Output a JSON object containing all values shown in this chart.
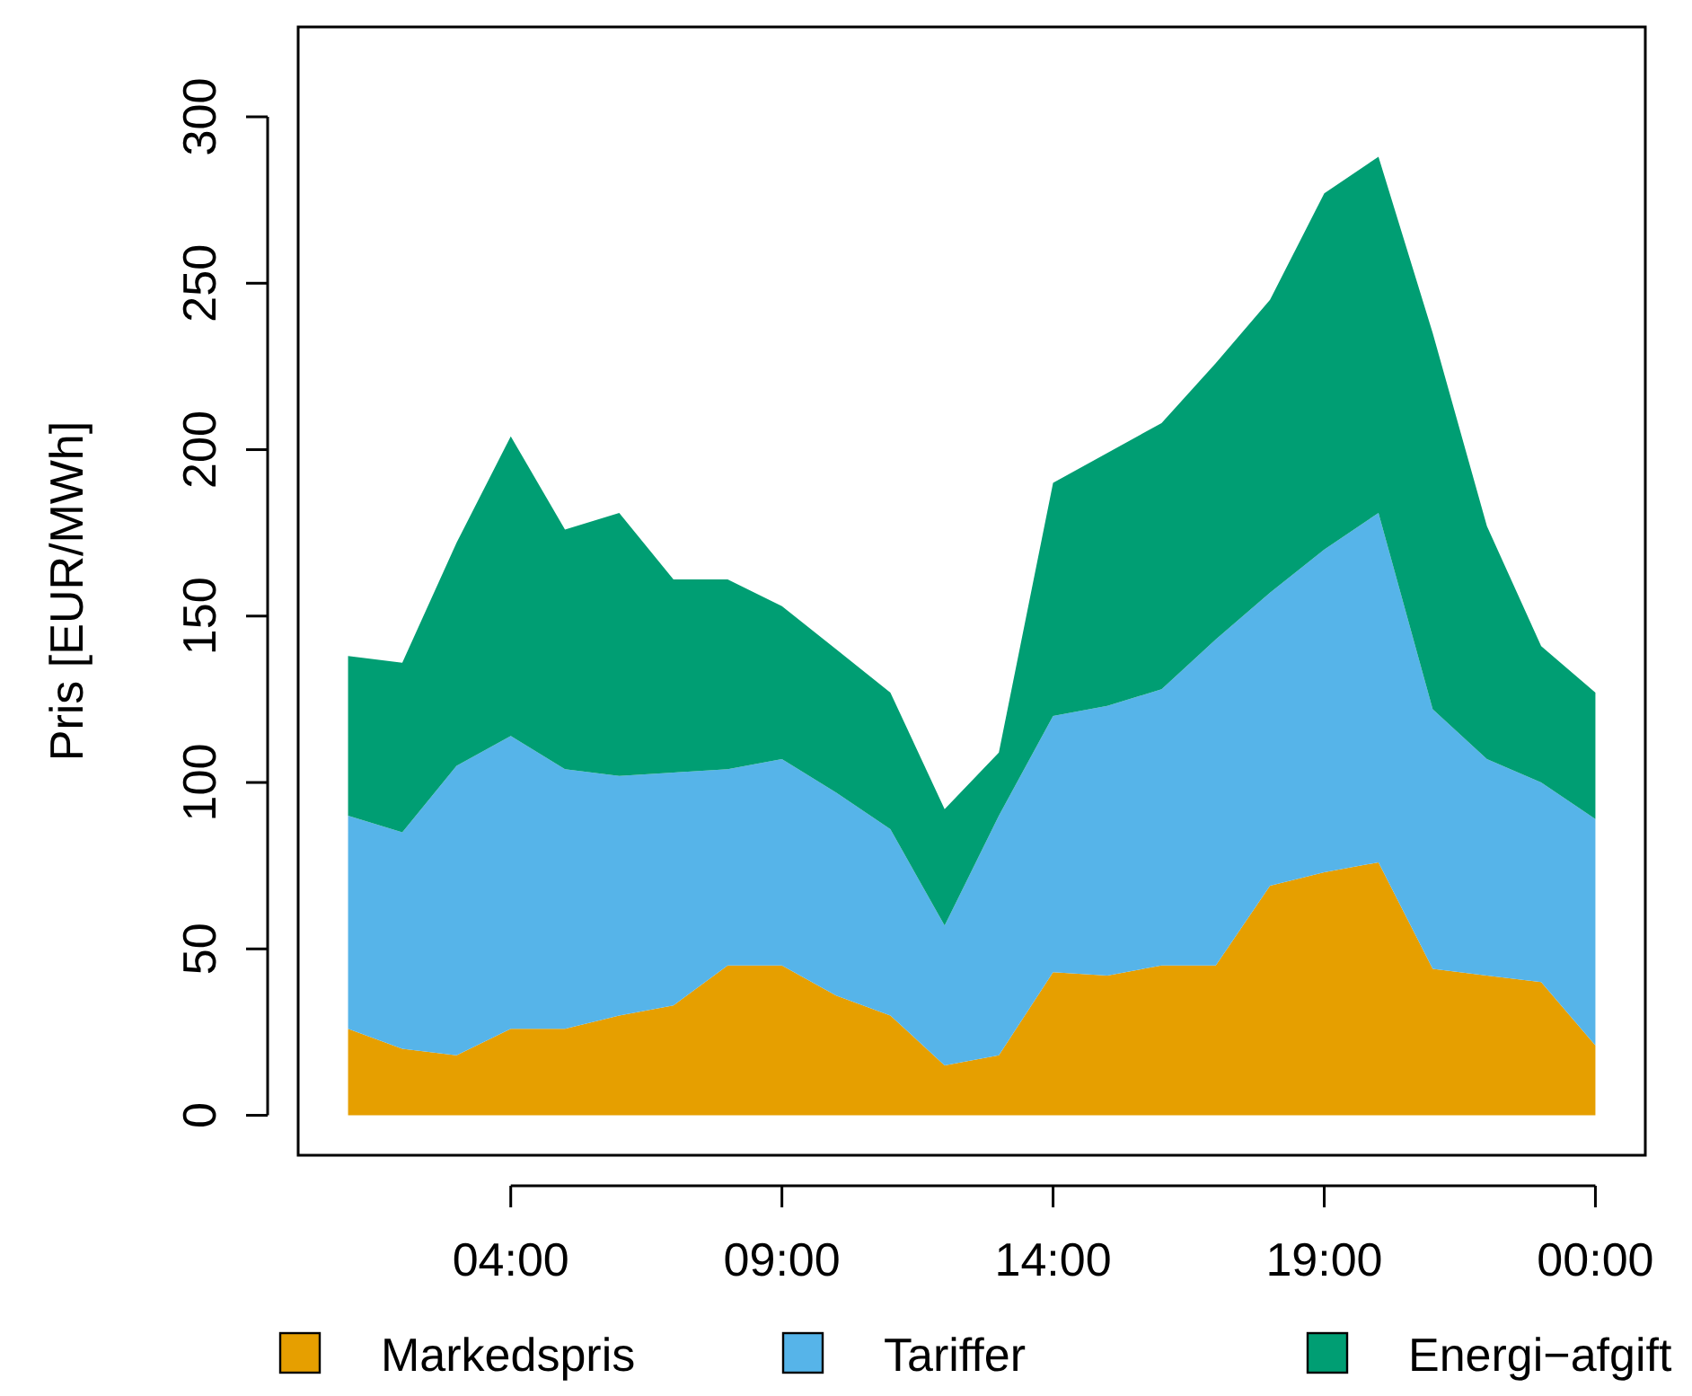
{
  "chart_data": {
    "type": "area",
    "stacked": true,
    "ylabel": "Pris [EUR/MWh]",
    "x": [
      1,
      2,
      3,
      4,
      5,
      6,
      7,
      8,
      9,
      10,
      11,
      12,
      13,
      14,
      15,
      16,
      17,
      18,
      19,
      20,
      21,
      22,
      23,
      24
    ],
    "xlim": [
      0.08,
      24.92
    ],
    "ylim": [
      -12,
      327
    ],
    "xticks": [
      {
        "value": 4,
        "label": "04:00"
      },
      {
        "value": 9,
        "label": "09:00"
      },
      {
        "value": 14,
        "label": "14:00"
      },
      {
        "value": 19,
        "label": "19:00"
      },
      {
        "value": 24,
        "label": "00:00"
      }
    ],
    "yticks": [
      0,
      50,
      100,
      150,
      200,
      250,
      300
    ],
    "grid": false,
    "legend": "bottom",
    "series": [
      {
        "name": "Markedspris",
        "color": "#e69f00",
        "values": [
          26,
          20,
          18,
          26,
          26,
          30,
          33,
          45,
          45,
          36,
          30,
          15,
          18,
          43,
          42,
          45,
          45,
          69,
          73,
          76,
          44,
          42,
          40,
          21
        ]
      },
      {
        "name": "Tariffer",
        "color": "#56b4e9",
        "values": [
          64,
          65,
          87,
          88,
          78,
          72,
          70,
          59,
          62,
          61,
          56,
          42,
          72,
          77,
          81,
          83,
          98,
          88,
          97,
          105,
          78,
          65,
          60,
          68
        ]
      },
      {
        "name": "Energi−afgift",
        "color": "#009e73",
        "values": [
          48,
          51,
          67,
          90,
          72,
          79,
          58,
          57,
          46,
          43,
          41,
          35,
          19,
          70,
          76,
          80,
          83,
          88,
          107,
          107,
          113,
          70,
          41,
          38
        ]
      }
    ]
  }
}
